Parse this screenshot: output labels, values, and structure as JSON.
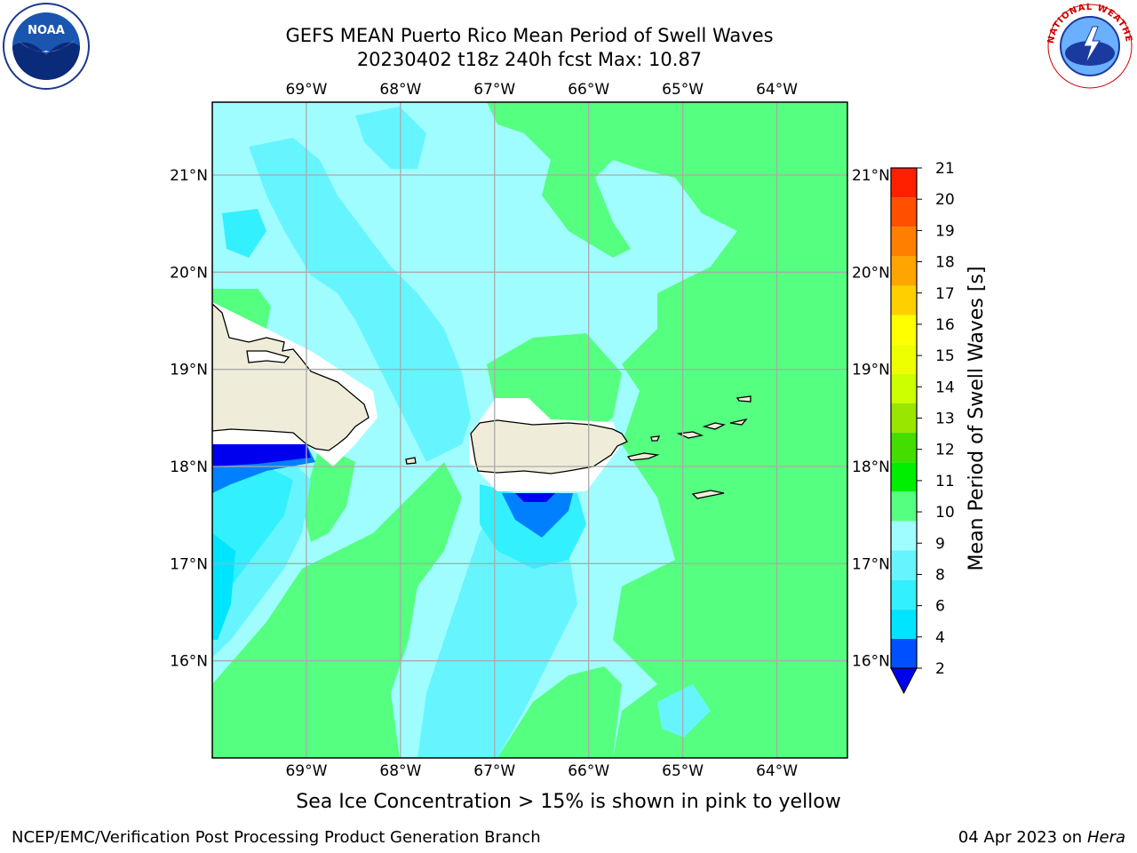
{
  "title": {
    "line1": "GEFS MEAN Puerto Rico Mean Period of Swell Waves",
    "line2": "20230402 t18z 240h fcst   Max: 10.87"
  },
  "logos": {
    "left": "noaa-logo",
    "left_text": "NOAA",
    "right": "national-weather-service-logo",
    "right_text": "NATIONAL WEATHER SERVICE"
  },
  "map": {
    "lon_labels": [
      "69°W",
      "68°W",
      "67°W",
      "66°W",
      "65°W",
      "64°W"
    ],
    "lat_labels": [
      "21°N",
      "20°N",
      "19°N",
      "18°N",
      "17°N",
      "16°N"
    ],
    "lon_values": [
      -69,
      -68,
      -67,
      -66,
      -65,
      -64
    ],
    "lat_values": [
      21,
      20,
      19,
      18,
      17,
      16
    ],
    "extent": {
      "lon_min": -70,
      "lon_max": -63.25,
      "lat_min": 15,
      "lat_max": 21.75
    }
  },
  "colorbar": {
    "label": "Mean Period of Swell Waves [s]",
    "levels": [
      2,
      4,
      6,
      7,
      8,
      9,
      10,
      11,
      12,
      13,
      14,
      15,
      16,
      17,
      18,
      19,
      20,
      21
    ],
    "tick_labels": [
      "2",
      "4",
      "6",
      "8",
      "9",
      "10",
      "11",
      "12",
      "13",
      "14",
      "15",
      "16",
      "17",
      "18",
      "19",
      "20",
      "21"
    ],
    "colors": [
      "#0050ff",
      "#00e5ff",
      "#33f0ff",
      "#66f5ff",
      "#a0fdff",
      "#55ff80",
      "#00ee00",
      "#44dd00",
      "#99e600",
      "#ccff00",
      "#eeff00",
      "#ffff00",
      "#ffd000",
      "#ffa500",
      "#ff8000",
      "#ff5000",
      "#ff2000"
    ],
    "extend_color": "#0000ee"
  },
  "caption": "Sea Ice Concentration > 15% is shown in pink to yellow",
  "footer": {
    "left": "NCEP/EMC/Verification Post Processing Product Generation Branch",
    "right_date": "04 Apr 2023 on ",
    "right_host": "Hera"
  }
}
